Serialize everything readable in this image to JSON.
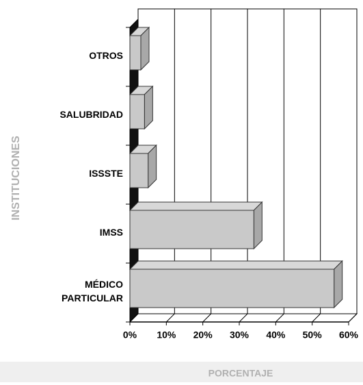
{
  "chart_data": {
    "type": "bar",
    "orientation": "horizontal",
    "x_label": "PORCENTAJE",
    "y_label": "INSTITUCIONES",
    "categories": [
      "OTROS",
      "SALUBRIDAD",
      "ISSSTE",
      "IMSS",
      "MÉDICO PARTICULAR"
    ],
    "values": [
      3,
      4,
      5,
      34,
      56
    ],
    "color": "#c9c9c9",
    "xlim": [
      0,
      60
    ],
    "xticks": [
      {
        "value": 0,
        "label": "0%"
      },
      {
        "value": 10,
        "label": "10%"
      },
      {
        "value": 20,
        "label": "20%"
      },
      {
        "value": 30,
        "label": "30%"
      },
      {
        "value": 40,
        "label": "40%"
      },
      {
        "value": 50,
        "label": "50%"
      },
      {
        "value": 60,
        "label": "60%"
      }
    ],
    "grid": true
  }
}
